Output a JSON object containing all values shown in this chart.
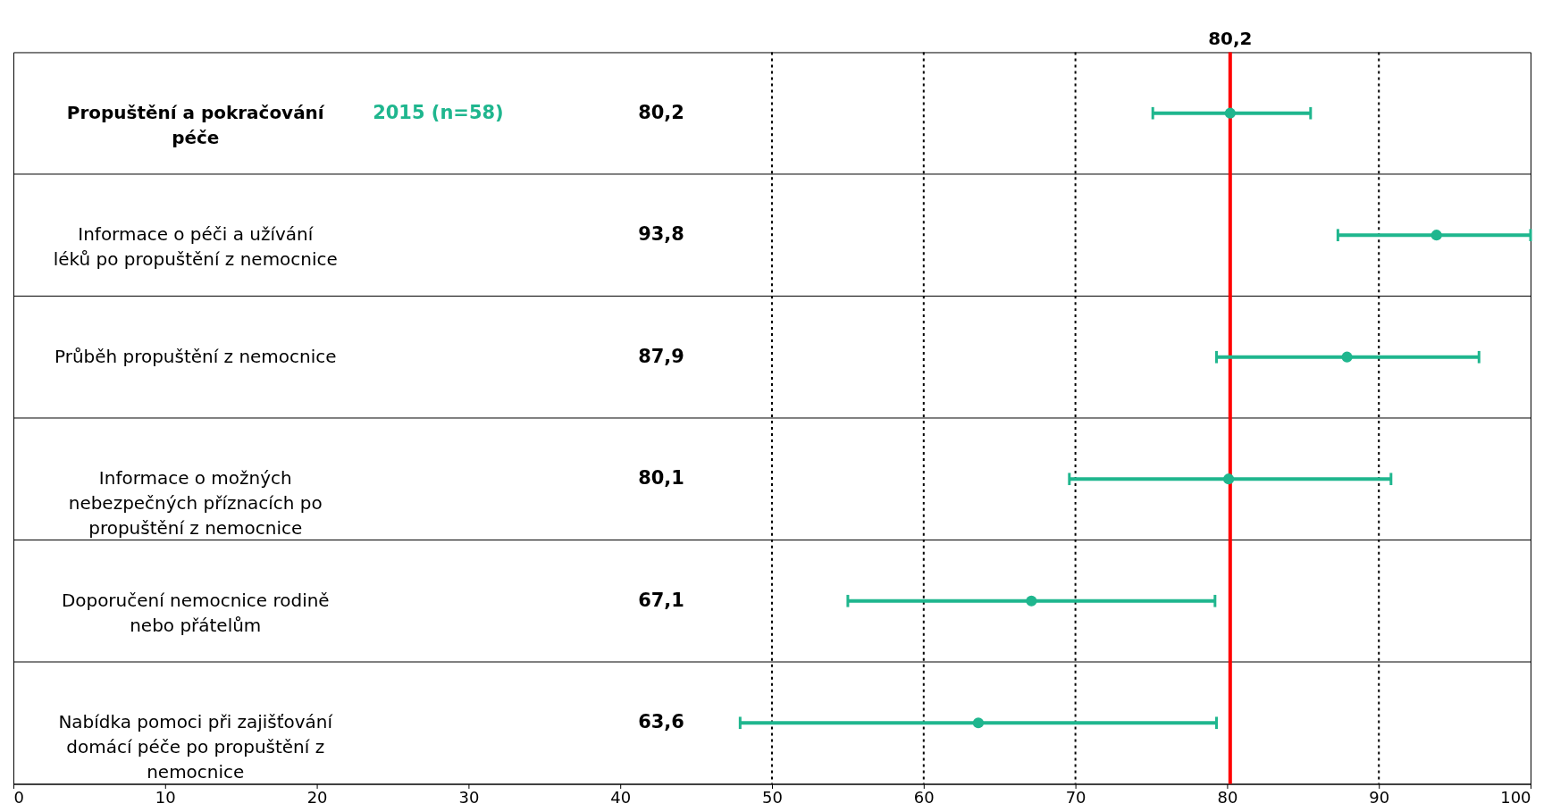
{
  "chart_data": {
    "type": "scatter",
    "orientation": "horizontal",
    "marker": "circle",
    "legend": false,
    "annotations": [
      "80,2",
      "93,8",
      "87,9",
      "80,1",
      "67,1",
      "63,6"
    ],
    "categories": [
      "Propuštění a pokračování péče",
      "Informace o péči a užívání léků po propuštění z nemocnice",
      "Průběh propuštění z nemocnice",
      "Informace o možných nebezpečných příznacích po propuštění z nemocnice",
      "Doporučení nemocnice rodině nebo přátelům",
      "Nabídka pomoci při zajišťování domácí péče po propuštění z nemocnice"
    ],
    "series": [
      {
        "name": "2015 (n=58)",
        "color": "#1fb68e",
        "values": [
          80.2,
          93.8,
          87.9,
          80.1,
          67.1,
          63.6
        ],
        "errors": [
          [
            75.1,
            85.5
          ],
          [
            87.3,
            100
          ],
          [
            79.3,
            96.6
          ],
          [
            69.6,
            90.8
          ],
          [
            55.0,
            79.2
          ],
          [
            47.9,
            79.3
          ]
        ]
      }
    ],
    "xlim": [
      0,
      100
    ],
    "xticks": [
      0,
      10,
      20,
      30,
      40,
      50,
      60,
      70,
      80,
      90,
      100
    ],
    "ref_lines": [
      {
        "axis": "x",
        "value": 80.2,
        "label": "80,2",
        "color": "#ff0000",
        "line_style": "solid"
      },
      {
        "axis": "x",
        "value": 50,
        "line_style": "dotted",
        "color": "#000000"
      },
      {
        "axis": "x",
        "value": 60,
        "line_style": "dotted",
        "color": "#000000"
      },
      {
        "axis": "x",
        "value": 70,
        "line_style": "dotted",
        "color": "#000000"
      },
      {
        "axis": "x",
        "value": 90,
        "line_style": "dotted",
        "color": "#000000"
      }
    ],
    "grid": false
  }
}
